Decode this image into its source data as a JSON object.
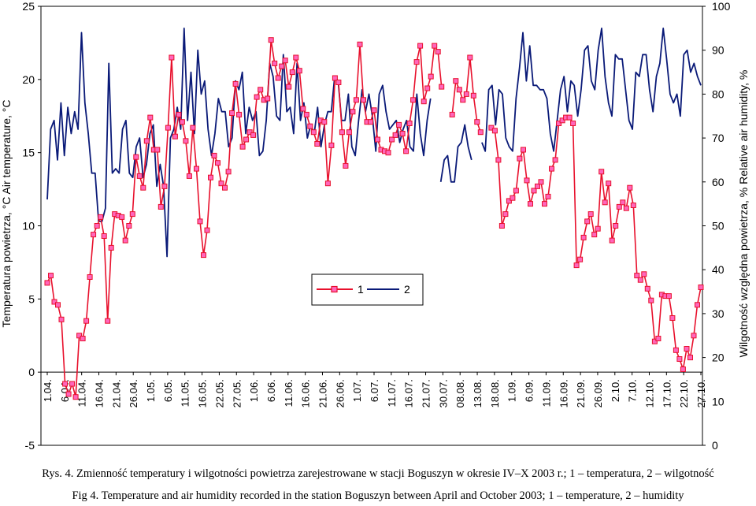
{
  "chart_data": {
    "type": "line",
    "left_axis": {
      "label": "Temperatura powietrza, °C   Air temperature, °C",
      "range": [
        -5,
        25
      ],
      "ticks": [
        -5,
        0,
        5,
        10,
        15,
        20,
        25
      ]
    },
    "right_axis": {
      "label": "Wilgotność względna powietrza, %   Relative air humidity, %",
      "range": [
        0,
        100
      ],
      "ticks": [
        0,
        10,
        20,
        30,
        40,
        50,
        60,
        70,
        80,
        90,
        100
      ]
    },
    "date_labels": [
      "1.04.",
      "6.04.",
      "11.04.",
      "16.04.",
      "21.04.",
      "26.04.",
      "1.05.",
      "6.05.",
      "11.05.",
      "16.05.",
      "22.05.",
      "27.05.",
      "1.06.",
      "6.06.",
      "11.06.",
      "16.06.",
      "21.06.",
      "26.06.",
      "1.07.",
      "6.07.",
      "11.07.",
      "16.07.",
      "21.07.",
      "30.07.",
      "08.08.",
      "13.08.",
      "18.08.",
      "1.09.",
      "6.09.",
      "11.09.",
      "16.09.",
      "21.09.",
      "26.09.",
      "2.10.",
      "7.10.",
      "12.10.",
      "17.10.",
      "22.10.",
      "27.10."
    ],
    "legend": [
      "1",
      "2"
    ],
    "legend_position": "center",
    "series": [
      {
        "name": "1",
        "axis": "left",
        "color": "#e8102c",
        "marker_fill": "#ff66bb",
        "segments": [
          [
            6.1,
            6.6,
            4.8,
            4.6,
            3.6,
            -0.8,
            -1.5,
            -0.8,
            -1.7,
            2.5,
            2.3,
            3.5,
            6.5,
            9.4,
            10.0,
            10.6,
            9.3,
            3.5,
            8.5,
            10.8,
            10.7,
            10.6,
            9.0,
            10.0,
            10.8,
            14.7,
            13.4,
            12.6,
            15.8,
            17.4,
            15.2,
            15.2,
            11.3,
            12.7,
            16.7,
            21.5,
            16.1,
            17.6,
            17.1,
            15.8,
            13.4,
            16.7,
            13.9,
            10.3,
            8.0,
            9.7,
            13.3,
            14.8,
            14.3,
            12.9,
            12.6,
            13.7,
            17.7,
            19.7,
            17.6,
            15.4,
            15.9,
            16.4,
            16.2,
            18.8,
            19.3,
            18.6,
            18.7,
            22.7,
            21.1,
            20.1,
            20.9,
            21.3,
            19.5,
            20.5,
            21.5,
            20.6,
            18.0,
            17.6,
            16.8,
            16.4,
            15.6,
            17.2,
            17.1,
            12.9,
            15.5,
            20.1,
            19.8,
            16.4,
            14.1,
            16.4,
            17.8,
            18.6,
            22.4,
            18.6,
            17.1,
            17.1,
            17.9,
            15.9,
            15.2,
            15.1,
            15.0,
            15.9,
            16.2,
            16.9,
            16.3,
            15.1,
            17.0,
            18.6,
            21.2,
            22.3,
            18.5,
            19.4,
            20.2,
            22.3,
            21.9,
            19.5
          ],
          [
            17.6,
            19.9,
            19.3,
            18.6,
            19.0,
            21.5,
            18.9,
            17.1,
            16.4
          ],
          [
            16.7,
            16.5,
            14.5,
            10.0,
            10.8,
            11.7,
            11.9,
            12.4,
            14.6,
            15.2,
            13.1,
            11.5,
            12.4,
            12.7,
            13.0,
            11.5,
            12.0,
            13.9,
            14.5,
            17.0,
            17.2,
            17.4,
            17.4,
            17.0,
            7.3,
            7.7,
            9.2,
            10.3,
            10.8,
            9.4,
            9.8,
            13.7,
            11.6,
            12.9,
            9.0,
            10.0,
            11.3,
            11.6,
            11.2,
            12.6,
            11.4,
            6.6,
            6.3,
            6.7,
            5.7,
            4.9,
            2.1,
            2.3,
            5.3,
            5.2,
            5.2,
            3.7,
            1.5,
            0.9,
            0.2,
            1.6,
            1.0,
            2.5,
            4.6,
            5.8
          ]
        ]
      },
      {
        "name": "2",
        "axis": "right",
        "color": "#0a1a78",
        "segments": [
          [
            56,
            72,
            74,
            65,
            78,
            66,
            77,
            71,
            76,
            72,
            94,
            78,
            71,
            62,
            62,
            51,
            51,
            54,
            87,
            62,
            63,
            62,
            72,
            74,
            62,
            61,
            68,
            70,
            61,
            64,
            71,
            73,
            59,
            64,
            59,
            43,
            70,
            72,
            77,
            72,
            95,
            74,
            85,
            71,
            90,
            80,
            83,
            72,
            66,
            71,
            79,
            76,
            76,
            68,
            70,
            83,
            81,
            85,
            71,
            77,
            74,
            76,
            66,
            67,
            74,
            87,
            84,
            75,
            74,
            89,
            76,
            77,
            71,
            87,
            74,
            78,
            70,
            73,
            71,
            77,
            68,
            73,
            76,
            76,
            84,
            83,
            74,
            74,
            80,
            68,
            66,
            74,
            81,
            76,
            80,
            75,
            67,
            80,
            82,
            76,
            72,
            73,
            74,
            69,
            72,
            74,
            68,
            67,
            80,
            71,
            66,
            74,
            79
          ],
          [
            60,
            65,
            66,
            60,
            60,
            68,
            69,
            73,
            68,
            65
          ],
          [
            69,
            67,
            81,
            82,
            73,
            81,
            80,
            70,
            68,
            67,
            79,
            86,
            94,
            83,
            91,
            82,
            82,
            81,
            81,
            79,
            71,
            67,
            74,
            81,
            84,
            76,
            83,
            82,
            75,
            81,
            90,
            91,
            83,
            81,
            90,
            95,
            84,
            78,
            75,
            89,
            88,
            88,
            81,
            74,
            72,
            85,
            84,
            89,
            89,
            81,
            76,
            84,
            87,
            95,
            88,
            80,
            78,
            80,
            75,
            89,
            90,
            85,
            87,
            84,
            82
          ]
        ]
      }
    ]
  },
  "caption_pl": "Rys. 4. Zmienność temperatury i wilgotności powietrza zarejestrowane w stacji Boguszyn w okresie IV–X 2003 r.; 1 – temperatura, 2 – wilgotność",
  "caption_en": "Fig 4. Temperature and air humidity recorded in the station Boguszyn between April and October 2003; 1 – temperature, 2 – humidity"
}
